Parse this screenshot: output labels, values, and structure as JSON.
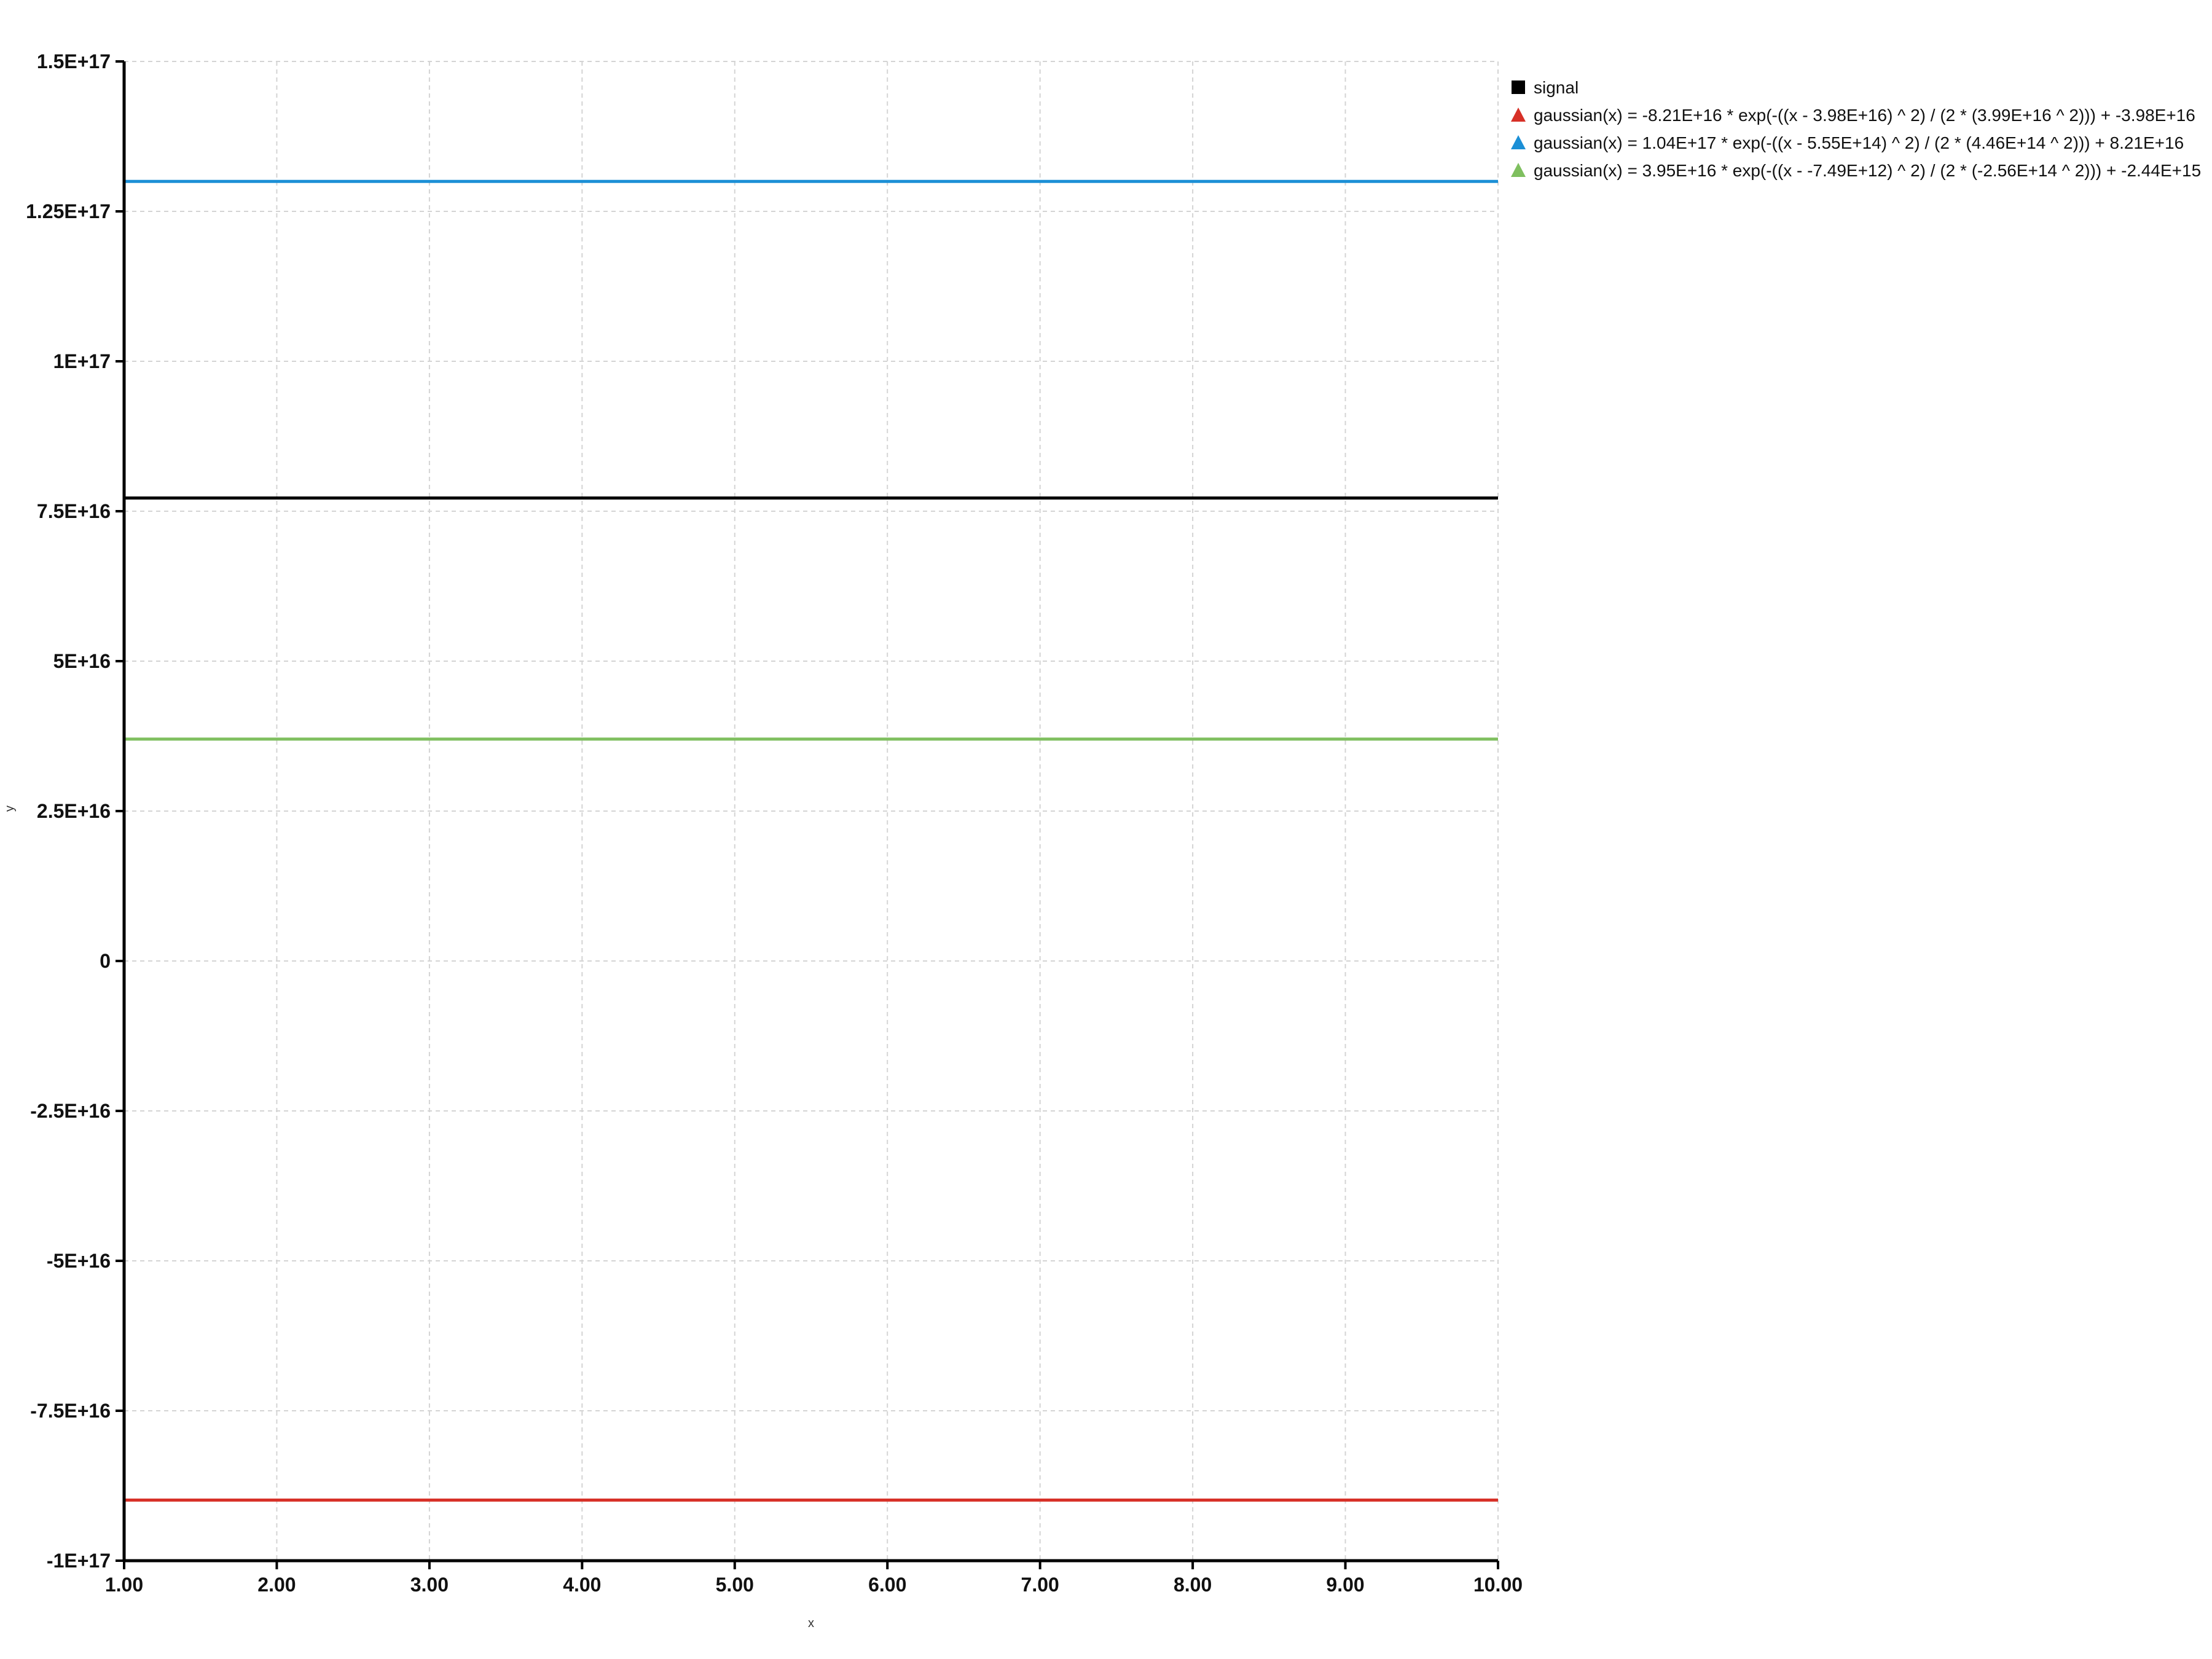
{
  "chart_data": {
    "type": "line",
    "xlabel": "x",
    "ylabel": "y",
    "xlim": [
      1,
      10
    ],
    "ylim": [
      -1e+17,
      1.5e+17
    ],
    "x_ticks": [
      1,
      2,
      3,
      4,
      5,
      6,
      7,
      8,
      9,
      10
    ],
    "x_tick_labels": [
      "1.00",
      "2.00",
      "3.00",
      "4.00",
      "5.00",
      "6.00",
      "7.00",
      "8.00",
      "9.00",
      "10.00"
    ],
    "y_ticks": [
      -1e+17,
      -7.5e+16,
      -5e+16,
      -2.5e+16,
      0,
      2.5e+16,
      5e+16,
      7.5e+16,
      1e+17,
      1.25e+17,
      1.5e+17
    ],
    "y_tick_labels": [
      "-1E+17",
      "-7.5E+16",
      "-5E+16",
      "-2.5E+16",
      "0",
      "2.5E+16",
      "5E+16",
      "7.5E+16",
      "1E+17",
      "1.25E+17",
      "1.5E+17"
    ],
    "grid": true,
    "legend_position": "top-right, outside plot",
    "series": [
      {
        "name": "signal",
        "marker": "square",
        "color": "#000000",
        "x": [
          1,
          10
        ],
        "y": [
          7.72e+16,
          7.72e+16
        ]
      },
      {
        "name": "gaussian(x) = -8.21E+16 * exp(-((x - 3.98E+16) ^ 2) / (2 * (3.99E+16 ^ 2))) + -3.98E+16",
        "marker": "triangle",
        "color": "#d73027",
        "x": [
          1,
          10
        ],
        "y": [
          -8.99e+16,
          -8.99e+16
        ]
      },
      {
        "name": "gaussian(x) = 1.04E+17 * exp(-((x - 5.55E+14) ^ 2) / (2 * (4.46E+14 ^ 2))) + 8.21E+16",
        "marker": "triangle",
        "color": "#1b8fd6",
        "x": [
          1,
          10
        ],
        "y": [
          1.3e+17,
          1.3e+17
        ]
      },
      {
        "name": "gaussian(x) = 3.95E+16 * exp(-((x - -7.49E+12) ^ 2) / (2 * (-2.56E+14 ^ 2))) + -2.44E+15",
        "marker": "triangle",
        "color": "#7fbf5f",
        "x": [
          1,
          10
        ],
        "y": [
          3.7e+16,
          3.7e+16
        ]
      }
    ]
  }
}
